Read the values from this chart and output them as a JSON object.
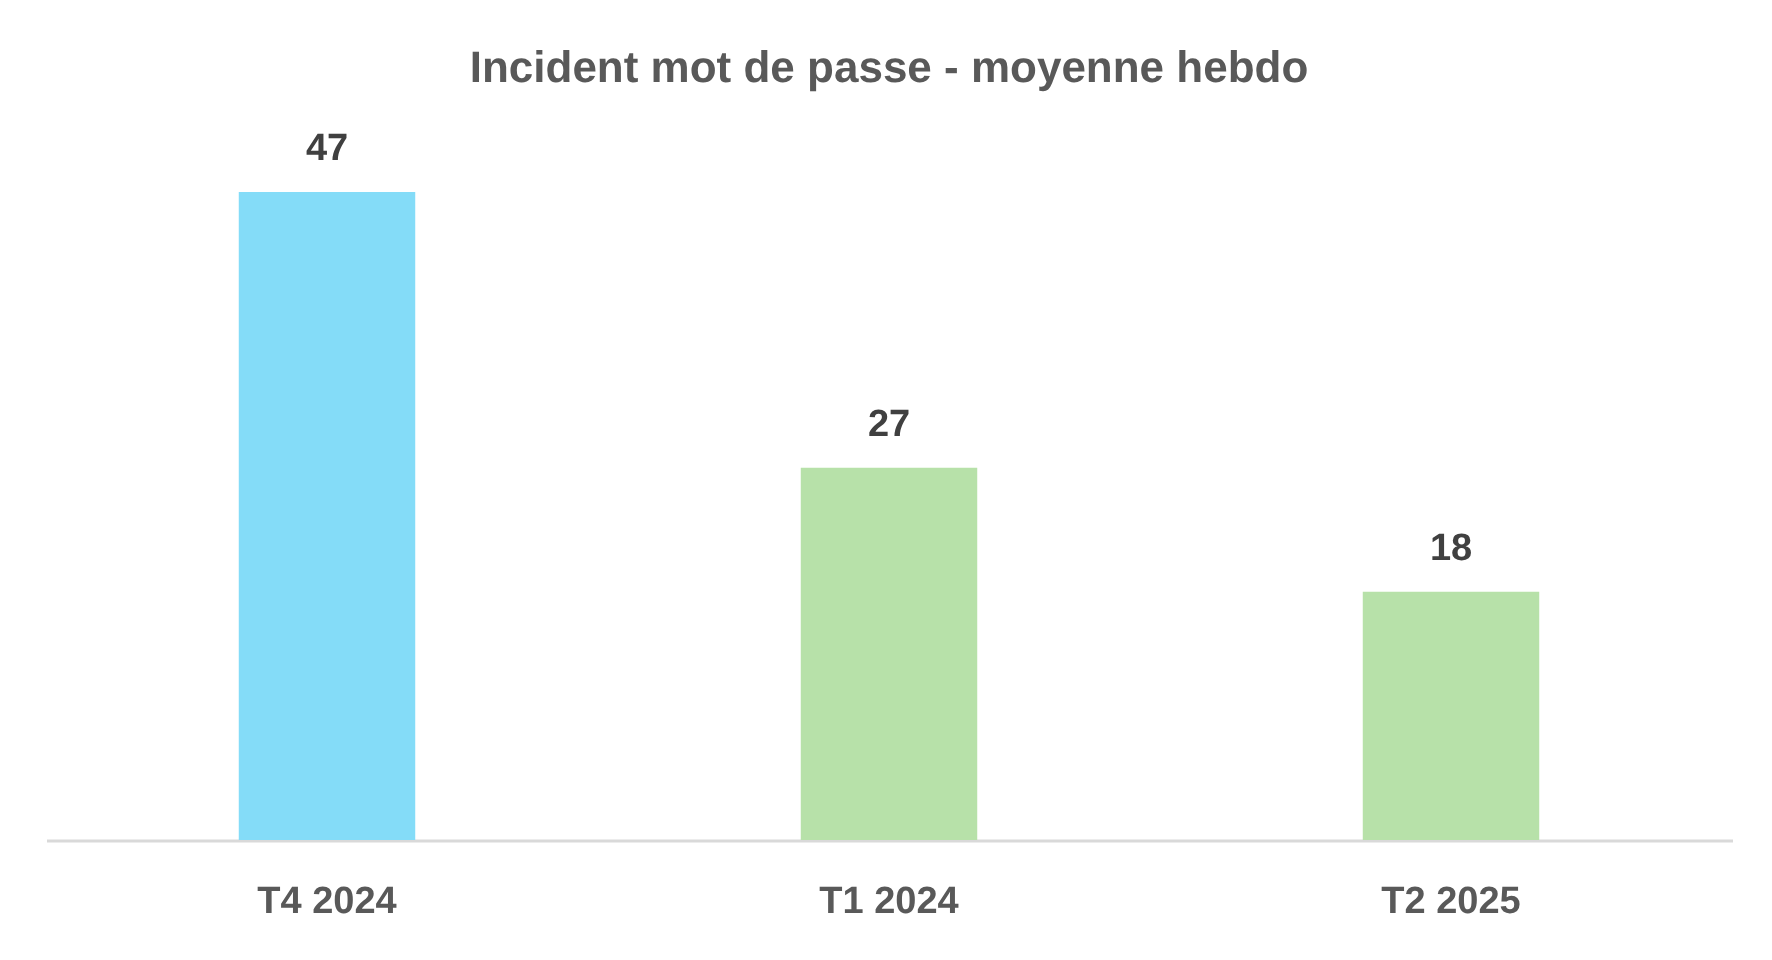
{
  "chart_data": {
    "type": "bar",
    "title": "Incident mot de passe - moyenne hebdo",
    "categories": [
      "T4 2024",
      "T1 2024",
      "T2 2025"
    ],
    "values": [
      47,
      27,
      18
    ],
    "colors": [
      "#84dcf8",
      "#b7e1a9",
      "#b7e1a9"
    ],
    "data_labels": true
  }
}
